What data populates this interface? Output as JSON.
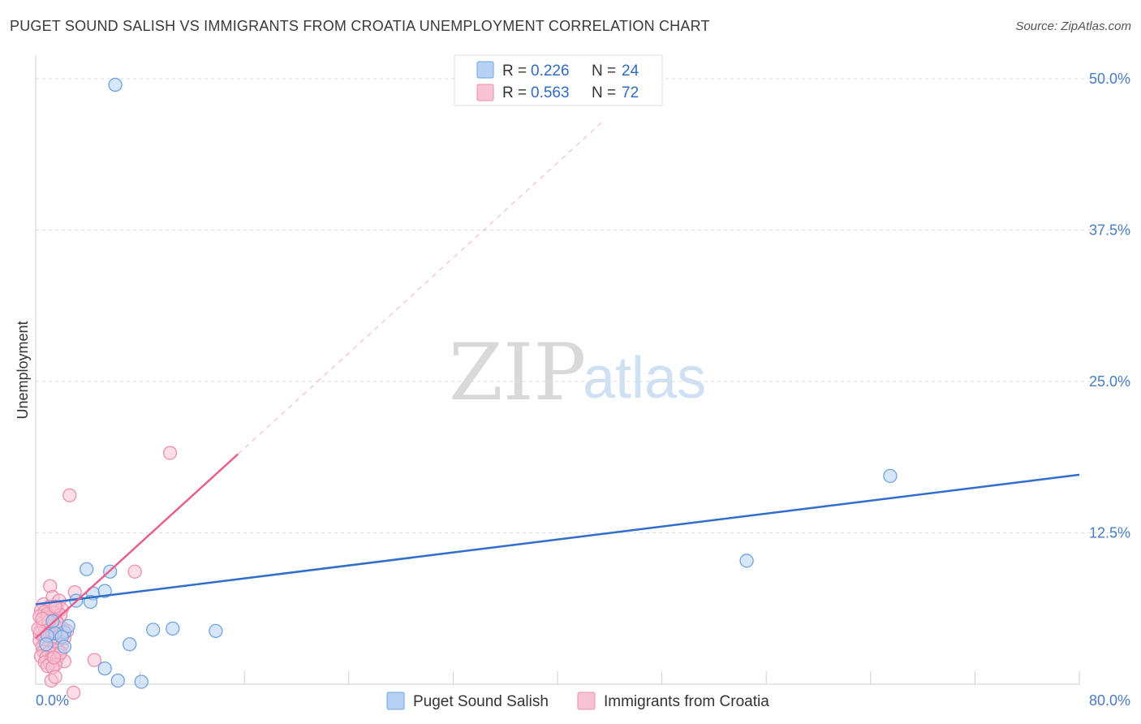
{
  "title": "PUGET SOUND SALISH VS IMMIGRANTS FROM CROATIA UNEMPLOYMENT CORRELATION CHART",
  "source": "Source: ZipAtlas.com",
  "watermark": {
    "zip": "ZIP",
    "atlas": "atlas"
  },
  "chart_data": {
    "type": "scatter",
    "ylabel": "Unemployment",
    "xlim": [
      0,
      80
    ],
    "ylim": [
      0,
      50
    ],
    "x_tick_labels": [
      "0.0%",
      "80.0%"
    ],
    "y_ticks": [
      {
        "value": 12.5,
        "label": "12.5%"
      },
      {
        "value": 25.0,
        "label": "25.0%"
      },
      {
        "value": 37.5,
        "label": "37.5%"
      },
      {
        "value": 50.0,
        "label": "50.0%"
      }
    ],
    "grid": true,
    "legend_position": "top-center",
    "series": [
      {
        "name": "Puget Sound Salish",
        "r_label": "R =",
        "r": "0.226",
        "n_label": "N =",
        "n": "24",
        "color": "#6fa3e0",
        "fill": "#b7d1f2",
        "trend_color": "#2f6ecb",
        "trend": {
          "x0": 0,
          "y0": 6.6,
          "x1": 80,
          "y1": 17.3
        },
        "points": [
          [
            6.1,
            49.5
          ],
          [
            3.9,
            9.5
          ],
          [
            5.7,
            9.3
          ],
          [
            4.4,
            7.5
          ],
          [
            5.3,
            7.7
          ],
          [
            4.2,
            6.8
          ],
          [
            3.1,
            6.9
          ],
          [
            1.3,
            5.2
          ],
          [
            2.2,
            4.3
          ],
          [
            2.5,
            4.8
          ],
          [
            10.5,
            4.6
          ],
          [
            9.0,
            4.5
          ],
          [
            13.8,
            4.4
          ],
          [
            1.5,
            4.2
          ],
          [
            0.9,
            4.0
          ],
          [
            2.0,
            3.9
          ],
          [
            7.2,
            3.3
          ],
          [
            2.2,
            3.1
          ],
          [
            0.8,
            3.3
          ],
          [
            5.3,
            1.3
          ],
          [
            6.3,
            0.3
          ],
          [
            8.1,
            0.2
          ],
          [
            54.5,
            10.2
          ],
          [
            65.5,
            17.2
          ]
        ]
      },
      {
        "name": "Immigrants from Croatia",
        "r_label": "R =",
        "r": "0.563",
        "n_label": "N =",
        "n": "72",
        "color": "#ec8fae",
        "fill": "#f7c3d4",
        "trend_color": "#e8608c",
        "trend": {
          "x0": 0,
          "y0": 3.8,
          "x1": 15.5,
          "y1": 19.0
        },
        "trend_ext": {
          "x0": 15.5,
          "y0": 19.0,
          "x1": 43.5,
          "y1": 46.5
        },
        "points": [
          [
            10.3,
            19.1
          ],
          [
            2.6,
            15.6
          ],
          [
            7.6,
            9.3
          ],
          [
            1.1,
            8.1
          ],
          [
            3.0,
            7.6
          ],
          [
            1.3,
            7.2
          ],
          [
            1.8,
            6.9
          ],
          [
            0.6,
            6.6
          ],
          [
            1.1,
            6.4
          ],
          [
            1.6,
            6.3
          ],
          [
            2.0,
            6.2
          ],
          [
            0.4,
            6.1
          ],
          [
            0.7,
            6.0
          ],
          [
            1.4,
            5.9
          ],
          [
            1.9,
            5.7
          ],
          [
            0.3,
            5.6
          ],
          [
            0.9,
            5.5
          ],
          [
            1.2,
            5.3
          ],
          [
            1.6,
            5.2
          ],
          [
            0.5,
            5.0
          ],
          [
            1.0,
            4.9
          ],
          [
            1.3,
            4.8
          ],
          [
            1.7,
            4.7
          ],
          [
            2.1,
            4.6
          ],
          [
            0.4,
            4.5
          ],
          [
            0.8,
            4.4
          ],
          [
            1.1,
            4.3
          ],
          [
            1.5,
            4.2
          ],
          [
            1.9,
            4.1
          ],
          [
            0.6,
            4.0
          ],
          [
            1.0,
            3.9
          ],
          [
            1.4,
            3.8
          ],
          [
            1.8,
            3.7
          ],
          [
            0.3,
            3.6
          ],
          [
            0.7,
            3.5
          ],
          [
            1.2,
            3.4
          ],
          [
            1.6,
            3.3
          ],
          [
            2.0,
            3.2
          ],
          [
            0.5,
            3.1
          ],
          [
            0.9,
            3.0
          ],
          [
            1.3,
            2.9
          ],
          [
            1.7,
            2.8
          ],
          [
            0.6,
            2.7
          ],
          [
            1.0,
            2.6
          ],
          [
            1.4,
            2.5
          ],
          [
            1.8,
            2.4
          ],
          [
            0.4,
            2.3
          ],
          [
            0.8,
            2.2
          ],
          [
            1.2,
            2.1
          ],
          [
            1.6,
            2.0
          ],
          [
            2.2,
            1.9
          ],
          [
            0.7,
            1.8
          ],
          [
            1.1,
            1.7
          ],
          [
            1.5,
            1.6
          ],
          [
            0.9,
            1.5
          ],
          [
            1.3,
            1.4
          ],
          [
            4.5,
            2.0
          ],
          [
            2.2,
            3.8
          ],
          [
            1.9,
            2.6
          ],
          [
            1.4,
            2.2
          ],
          [
            0.6,
            4.8
          ],
          [
            0.9,
            5.8
          ],
          [
            1.5,
            6.4
          ],
          [
            0.3,
            4.2
          ],
          [
            2.4,
            4.4
          ],
          [
            1.2,
            0.3
          ],
          [
            1.5,
            0.6
          ],
          [
            2.9,
            -0.7
          ],
          [
            1.7,
            5.0
          ],
          [
            0.2,
            4.6
          ],
          [
            1.0,
            5.2
          ],
          [
            0.5,
            5.4
          ]
        ]
      }
    ]
  }
}
